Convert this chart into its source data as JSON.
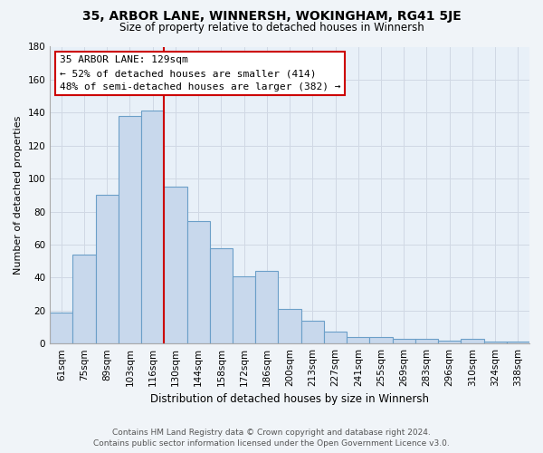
{
  "title": "35, ARBOR LANE, WINNERSH, WOKINGHAM, RG41 5JE",
  "subtitle": "Size of property relative to detached houses in Winnersh",
  "xlabel": "Distribution of detached houses by size in Winnersh",
  "ylabel": "Number of detached properties",
  "footer_line1": "Contains HM Land Registry data © Crown copyright and database right 2024.",
  "footer_line2": "Contains public sector information licensed under the Open Government Licence v3.0.",
  "bin_labels": [
    "61sqm",
    "75sqm",
    "89sqm",
    "103sqm",
    "116sqm",
    "130sqm",
    "144sqm",
    "158sqm",
    "172sqm",
    "186sqm",
    "200sqm",
    "213sqm",
    "227sqm",
    "241sqm",
    "255sqm",
    "269sqm",
    "283sqm",
    "296sqm",
    "310sqm",
    "324sqm",
    "338sqm"
  ],
  "bar_heights": [
    19,
    54,
    90,
    138,
    141,
    95,
    74,
    58,
    41,
    44,
    21,
    14,
    7,
    4,
    4,
    3,
    3,
    2,
    3,
    1,
    1
  ],
  "bar_color": "#c8d8ec",
  "bar_edge_color": "#6b9fc8",
  "vline_x_left_edge": 4.5,
  "vline_color": "#cc0000",
  "annotation_title": "35 ARBOR LANE: 129sqm",
  "annotation_line2": "← 52% of detached houses are smaller (414)",
  "annotation_line3": "48% of semi-detached houses are larger (382) →",
  "annotation_box_color": "#ffffff",
  "annotation_box_edge": "#cc0000",
  "ylim": [
    0,
    180
  ],
  "yticks": [
    0,
    20,
    40,
    60,
    80,
    100,
    120,
    140,
    160,
    180
  ],
  "background_color": "#f0f4f8",
  "grid_color": "#d0d8e4",
  "plot_bg_color": "#e8f0f8"
}
